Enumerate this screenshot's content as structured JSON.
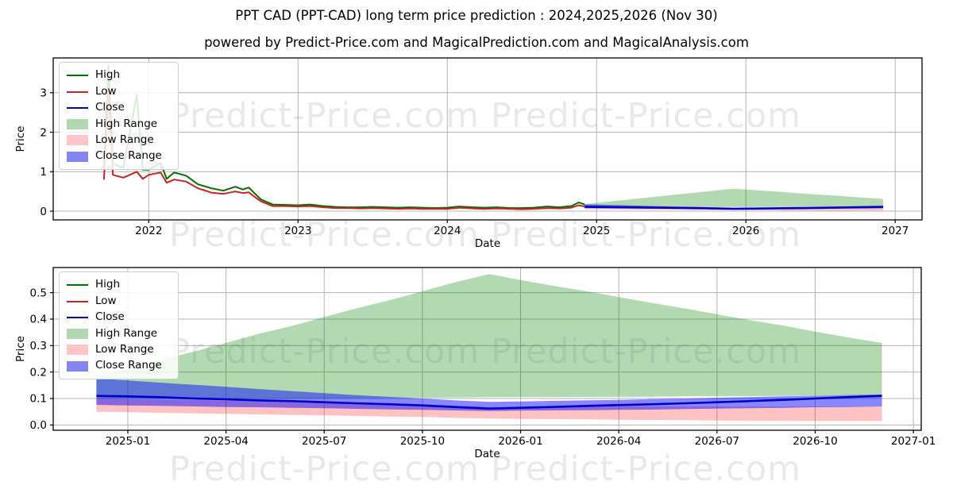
{
  "header": {
    "title": "PPT CAD (PPT-CAD) long term price prediction : 2024,2025,2026 (Nov 30)",
    "subtitle": "powered by Predict-Price.com and MagicalPrediction.com and MagicalAnalysis.com"
  },
  "watermark": {
    "text": "Predict-Price.com"
  },
  "colors": {
    "high": "#007000",
    "low": "#cc2222",
    "close": "#0000cc",
    "high_range_fill": "#b2d8b2",
    "low_range_fill": "#ffc6c6",
    "close_range_fill": "#8585f2",
    "grid": "#b3b3b3",
    "watermark": "#e8e8e8"
  },
  "legend": {
    "items": [
      {
        "label": "High",
        "type": "line",
        "color": "#007000"
      },
      {
        "label": "Low",
        "type": "line",
        "color": "#cc2222"
      },
      {
        "label": "Close",
        "type": "line",
        "color": "#0000cc"
      },
      {
        "label": "High Range",
        "type": "patch",
        "color": "#b2d8b2"
      },
      {
        "label": "Low Range",
        "type": "patch",
        "color": "#ffc6c6"
      },
      {
        "label": "Close Range",
        "type": "patch",
        "color": "#8585f2"
      }
    ]
  },
  "chart_data": [
    {
      "type": "line",
      "title": "",
      "xlabel": "Date",
      "ylabel": "Price",
      "grid": true,
      "legend_position": "upper left",
      "xlim": [
        2021.36,
        2027.18
      ],
      "ylim": [
        -0.22,
        3.88
      ],
      "x_tick_values": [
        2022,
        2023,
        2024,
        2025,
        2026,
        2027
      ],
      "x_tick_labels": [
        "2022",
        "2023",
        "2024",
        "2025",
        "2026",
        "2027"
      ],
      "y_tick_values": [
        0,
        1,
        2,
        3
      ],
      "y_tick_labels": [
        "0",
        "1",
        "2",
        "3"
      ],
      "historical": {
        "x": [
          2021.7,
          2021.73,
          2021.76,
          2021.83,
          2021.92,
          2021.96,
          2022.0,
          2022.08,
          2022.12,
          2022.17,
          2022.25,
          2022.33,
          2022.42,
          2022.5,
          2022.58,
          2022.63,
          2022.67,
          2022.71,
          2022.75,
          2022.83,
          2022.92,
          2023.0,
          2023.08,
          2023.17,
          2023.25,
          2023.33,
          2023.42,
          2023.5,
          2023.58,
          2023.67,
          2023.75,
          2023.83,
          2023.92,
          2024.0,
          2024.08,
          2024.17,
          2024.25,
          2024.33,
          2024.42,
          2024.5,
          2024.58,
          2024.67,
          2024.75,
          2024.83,
          2024.88,
          2024.92
        ],
        "high": [
          1.05,
          3.7,
          1.2,
          1.1,
          2.95,
          1.05,
          1.05,
          1.22,
          0.82,
          0.98,
          0.9,
          0.68,
          0.58,
          0.52,
          0.62,
          0.55,
          0.6,
          0.45,
          0.3,
          0.17,
          0.16,
          0.15,
          0.17,
          0.13,
          0.11,
          0.1,
          0.1,
          0.11,
          0.1,
          0.09,
          0.1,
          0.09,
          0.08,
          0.09,
          0.12,
          0.1,
          0.09,
          0.1,
          0.08,
          0.08,
          0.09,
          0.12,
          0.1,
          0.13,
          0.22,
          0.17
        ],
        "low": [
          0.8,
          3.1,
          0.92,
          0.85,
          1.0,
          0.82,
          0.92,
          0.98,
          0.72,
          0.8,
          0.75,
          0.58,
          0.47,
          0.44,
          0.5,
          0.46,
          0.48,
          0.36,
          0.25,
          0.13,
          0.13,
          0.12,
          0.13,
          0.1,
          0.08,
          0.08,
          0.07,
          0.08,
          0.07,
          0.06,
          0.07,
          0.06,
          0.06,
          0.06,
          0.09,
          0.07,
          0.06,
          0.07,
          0.06,
          0.05,
          0.06,
          0.08,
          0.07,
          0.09,
          0.15,
          0.12
        ]
      },
      "prediction": {
        "x": [
          2024.92,
          2025.0,
          2025.08,
          2025.17,
          2025.25,
          2025.33,
          2025.42,
          2025.5,
          2025.58,
          2025.67,
          2025.75,
          2025.83,
          2025.92,
          2026.0,
          2026.08,
          2026.17,
          2026.25,
          2026.33,
          2026.42,
          2026.5,
          2026.58,
          2026.67,
          2026.75,
          2026.83,
          2026.92
        ],
        "close": [
          0.11,
          0.108,
          0.105,
          0.1,
          0.097,
          0.093,
          0.09,
          0.086,
          0.082,
          0.078,
          0.074,
          0.068,
          0.062,
          0.065,
          0.068,
          0.072,
          0.075,
          0.078,
          0.082,
          0.086,
          0.09,
          0.095,
          0.1,
          0.105,
          0.11
        ],
        "high_range_upper": [
          0.18,
          0.213,
          0.245,
          0.278,
          0.31,
          0.343,
          0.375,
          0.408,
          0.44,
          0.473,
          0.505,
          0.538,
          0.57,
          0.548,
          0.527,
          0.505,
          0.483,
          0.462,
          0.44,
          0.418,
          0.397,
          0.375,
          0.353,
          0.332,
          0.31
        ],
        "high_range_lower": [
          0.1,
          0.1,
          0.1,
          0.1,
          0.1,
          0.1,
          0.1,
          0.1,
          0.101,
          0.102,
          0.103,
          0.104,
          0.105,
          0.105,
          0.106,
          0.106,
          0.107,
          0.107,
          0.108,
          0.108,
          0.109,
          0.11,
          0.11,
          0.111,
          0.112
        ],
        "low_range_upper": [
          0.1,
          0.098,
          0.096,
          0.094,
          0.092,
          0.09,
          0.088,
          0.086,
          0.083,
          0.08,
          0.077,
          0.073,
          0.068,
          0.068,
          0.069,
          0.069,
          0.07,
          0.07,
          0.07,
          0.07,
          0.07,
          0.07,
          0.07,
          0.07,
          0.07
        ],
        "low_range_lower": [
          0.05,
          0.048,
          0.046,
          0.044,
          0.042,
          0.04,
          0.038,
          0.036,
          0.034,
          0.032,
          0.03,
          0.027,
          0.024,
          0.023,
          0.022,
          0.021,
          0.02,
          0.019,
          0.018,
          0.017,
          0.016,
          0.016,
          0.015,
          0.015,
          0.015
        ],
        "close_range_upper": [
          0.176,
          0.168,
          0.16,
          0.152,
          0.144,
          0.136,
          0.128,
          0.12,
          0.113,
          0.106,
          0.1,
          0.093,
          0.087,
          0.089,
          0.091,
          0.093,
          0.095,
          0.098,
          0.1,
          0.103,
          0.105,
          0.108,
          0.11,
          0.113,
          0.115
        ],
        "close_range_lower": [
          0.076,
          0.074,
          0.072,
          0.07,
          0.068,
          0.067,
          0.065,
          0.063,
          0.061,
          0.059,
          0.057,
          0.055,
          0.053,
          0.054,
          0.055,
          0.056,
          0.057,
          0.058,
          0.06,
          0.062,
          0.063,
          0.065,
          0.067,
          0.068,
          0.07
        ]
      }
    },
    {
      "type": "line",
      "title": "",
      "xlabel": "Date",
      "ylabel": "Price",
      "grid": true,
      "legend_position": "upper left",
      "xlim": [
        2024.81,
        2027.02
      ],
      "ylim": [
        -0.02,
        0.595
      ],
      "x_tick_values": [
        2025.0,
        2025.25,
        2025.5,
        2025.75,
        2026.0,
        2026.25,
        2026.5,
        2026.75,
        2027.0
      ],
      "x_tick_labels": [
        "2025-01",
        "2025-04",
        "2025-07",
        "2025-10",
        "2026-01",
        "2026-04",
        "2026-07",
        "2026-10",
        "2027-01"
      ],
      "y_tick_values": [
        0.0,
        0.1,
        0.2,
        0.3,
        0.4,
        0.5
      ],
      "y_tick_labels": [
        "0.0",
        "0.1",
        "0.2",
        "0.3",
        "0.4",
        "0.5"
      ],
      "prediction": {
        "x": [
          2024.92,
          2025.0,
          2025.08,
          2025.17,
          2025.25,
          2025.33,
          2025.42,
          2025.5,
          2025.58,
          2025.67,
          2025.75,
          2025.83,
          2025.92,
          2026.0,
          2026.08,
          2026.17,
          2026.25,
          2026.33,
          2026.42,
          2026.5,
          2026.58,
          2026.67,
          2026.75,
          2026.83,
          2026.92
        ],
        "close": [
          0.11,
          0.108,
          0.105,
          0.1,
          0.097,
          0.093,
          0.09,
          0.086,
          0.082,
          0.078,
          0.074,
          0.068,
          0.062,
          0.065,
          0.068,
          0.072,
          0.075,
          0.078,
          0.082,
          0.086,
          0.09,
          0.095,
          0.1,
          0.105,
          0.11
        ],
        "high_range_upper": [
          0.18,
          0.213,
          0.245,
          0.278,
          0.31,
          0.343,
          0.375,
          0.408,
          0.44,
          0.473,
          0.505,
          0.538,
          0.57,
          0.548,
          0.527,
          0.505,
          0.483,
          0.462,
          0.44,
          0.418,
          0.397,
          0.375,
          0.353,
          0.332,
          0.31
        ],
        "high_range_lower": [
          0.1,
          0.1,
          0.1,
          0.1,
          0.1,
          0.1,
          0.1,
          0.1,
          0.101,
          0.102,
          0.103,
          0.104,
          0.105,
          0.105,
          0.106,
          0.106,
          0.107,
          0.107,
          0.108,
          0.108,
          0.109,
          0.11,
          0.11,
          0.111,
          0.112
        ],
        "low_range_upper": [
          0.1,
          0.098,
          0.096,
          0.094,
          0.092,
          0.09,
          0.088,
          0.086,
          0.083,
          0.08,
          0.077,
          0.073,
          0.068,
          0.068,
          0.069,
          0.069,
          0.07,
          0.07,
          0.07,
          0.07,
          0.07,
          0.07,
          0.07,
          0.07,
          0.07
        ],
        "low_range_lower": [
          0.05,
          0.048,
          0.046,
          0.044,
          0.042,
          0.04,
          0.038,
          0.036,
          0.034,
          0.032,
          0.03,
          0.027,
          0.024,
          0.023,
          0.022,
          0.021,
          0.02,
          0.019,
          0.018,
          0.017,
          0.016,
          0.016,
          0.015,
          0.015,
          0.015
        ],
        "close_range_upper": [
          0.176,
          0.168,
          0.16,
          0.152,
          0.144,
          0.136,
          0.128,
          0.12,
          0.113,
          0.106,
          0.1,
          0.093,
          0.087,
          0.089,
          0.091,
          0.093,
          0.095,
          0.098,
          0.1,
          0.103,
          0.105,
          0.108,
          0.11,
          0.113,
          0.115
        ],
        "close_range_lower": [
          0.076,
          0.074,
          0.072,
          0.07,
          0.068,
          0.067,
          0.065,
          0.063,
          0.061,
          0.059,
          0.057,
          0.055,
          0.053,
          0.054,
          0.055,
          0.056,
          0.057,
          0.058,
          0.06,
          0.062,
          0.063,
          0.065,
          0.067,
          0.068,
          0.07
        ]
      }
    }
  ]
}
